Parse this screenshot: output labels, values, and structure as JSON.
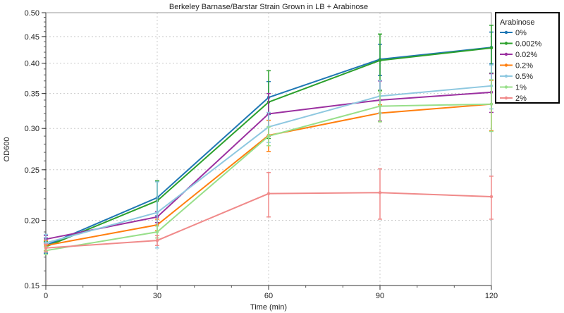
{
  "chart_data": {
    "type": "line",
    "title": "Berkeley Barnase/Barstar Strain Grown in LB + Arabinose",
    "xlabel": "Time (min)",
    "ylabel": "OD600",
    "x": [
      0,
      30,
      60,
      90,
      120
    ],
    "xlim": [
      0,
      120
    ],
    "xticks": [
      0,
      30,
      60,
      90,
      120
    ],
    "ylim": [
      0.15,
      0.5
    ],
    "yscale": "log",
    "yticks": [
      0.15,
      0.2,
      0.25,
      0.3,
      0.35,
      0.4,
      0.45,
      0.5
    ],
    "yticklabels": [
      "0.15",
      "0.20",
      "0.25",
      "0.30",
      "0.35",
      "0.40",
      "0.45",
      "0.50"
    ],
    "grid": true,
    "legend": {
      "title": "Arabinose",
      "placement": "top-right outside"
    },
    "series": [
      {
        "name": "0%",
        "color": "#1f77b4",
        "values": [
          0.179,
          0.221,
          0.344,
          0.407,
          0.429
        ],
        "errors": [
          0.006,
          0.017,
          0.025,
          0.028,
          0.03
        ]
      },
      {
        "name": "0.002%",
        "color": "#2ca02c",
        "values": [
          0.178,
          0.218,
          0.337,
          0.405,
          0.428
        ],
        "errors": [
          0.004,
          0.02,
          0.05,
          0.05,
          0.045
        ]
      },
      {
        "name": "0.02%",
        "color": "#9b30a0",
        "values": [
          0.184,
          0.203,
          0.32,
          0.34,
          0.352
        ],
        "errors": [
          0.003,
          0.005,
          0.03,
          0.03,
          0.03
        ]
      },
      {
        "name": "0.2%",
        "color": "#ff7f0e",
        "values": [
          0.179,
          0.196,
          0.291,
          0.321,
          0.334
        ],
        "errors": [
          0.004,
          0.005,
          0.02,
          0.012,
          0.037
        ]
      },
      {
        "name": "0.5%",
        "color": "#8ec8e0",
        "values": [
          0.181,
          0.207,
          0.302,
          0.346,
          0.362
        ],
        "errors": [
          0.007,
          0.03,
          0.02,
          0.025,
          0.035
        ]
      },
      {
        "name": "1%",
        "color": "#98df8a",
        "values": [
          0.175,
          0.19,
          0.29,
          0.331,
          0.334
        ],
        "errors": [
          0.003,
          0.005,
          0.012,
          0.022,
          0.038
        ]
      },
      {
        "name": "2%",
        "color": "#f08a8a",
        "values": [
          0.177,
          0.183,
          0.225,
          0.226,
          0.222
        ],
        "errors": [
          0.003,
          0.004,
          0.022,
          0.025,
          0.021
        ]
      }
    ]
  }
}
